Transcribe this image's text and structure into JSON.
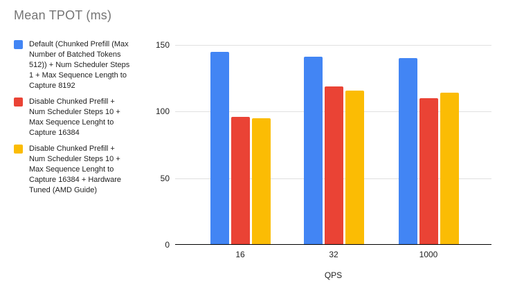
{
  "title": "Mean TPOT (ms)",
  "axis": {
    "x_title": "QPS"
  },
  "colors": {
    "series_blue": "#4285F4",
    "series_red": "#EA4335",
    "series_yellow": "#FBBC04",
    "title_gray": "#757575",
    "gridline": "#e0e0e0",
    "axis_line": "#000000",
    "tick_text": "#212121"
  },
  "chart_data": {
    "type": "bar",
    "title": "Mean TPOT (ms)",
    "xlabel": "QPS",
    "ylabel": "",
    "categories": [
      "16",
      "32",
      "1000"
    ],
    "series": [
      {
        "name": "Default (Chunked Prefill (Max\nNumber of Batched Tokens\n512)) + Num Scheduler Steps\n1 + Max Sequence Length to\nCapture 8192",
        "color": "#4285F4",
        "values": [
          145,
          141,
          140
        ]
      },
      {
        "name": "Disable Chunked Prefill +\nNum Scheduler Steps 10 +\nMax Sequence Lenght to\nCapture 16384",
        "color": "#EA4335",
        "values": [
          96,
          119,
          110
        ]
      },
      {
        "name": "Disable Chunked Prefill +\nNum Scheduler Steps 10 +\nMax Sequence Lenght to\nCapture 16384 + Hardware\nTuned (AMD Guide)",
        "color": "#FBBC04",
        "values": [
          95,
          116,
          114
        ]
      }
    ],
    "ylim": [
      0,
      150
    ],
    "yticks": [
      0,
      50,
      100,
      150
    ],
    "grid": true,
    "legend_position": "left"
  }
}
